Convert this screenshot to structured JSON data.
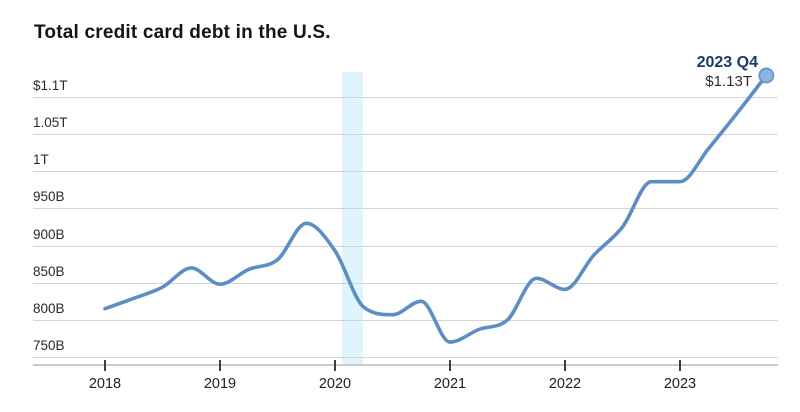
{
  "title": "Total credit card debt in the U.S.",
  "chart_data": {
    "type": "line",
    "title": "Total credit card debt in the U.S.",
    "unit": "USD billions",
    "x": [
      "2018 Q1",
      "2018 Q2",
      "2018 Q3",
      "2018 Q4",
      "2019 Q1",
      "2019 Q2",
      "2019 Q3",
      "2019 Q4",
      "2020 Q1",
      "2020 Q2",
      "2020 Q3",
      "2020 Q4",
      "2021 Q1",
      "2021 Q2",
      "2021 Q3",
      "2021 Q4",
      "2022 Q1",
      "2022 Q2",
      "2022 Q3",
      "2022 Q4",
      "2023 Q1",
      "2023 Q2",
      "2023 Q3",
      "2023 Q4"
    ],
    "values_billions": [
      815,
      829,
      844,
      870,
      848,
      868,
      881,
      930,
      893,
      817,
      807,
      825,
      770,
      787,
      800,
      856,
      841,
      887,
      925,
      986,
      986,
      1031,
      1079,
      1129
    ],
    "x_ticks": [
      "2018",
      "2019",
      "2020",
      "2021",
      "2022",
      "2023"
    ],
    "y_tick_labels": [
      "$1.1T",
      "1.05T",
      "1T",
      "950B",
      "900B",
      "850B",
      "800B",
      "750B"
    ],
    "y_tick_values": [
      1100,
      1050,
      1000,
      950,
      900,
      850,
      800,
      750
    ],
    "ylim": [
      750,
      1100
    ],
    "grid": "horizontal",
    "legend": "none",
    "annotation": {
      "label": "2023 Q4",
      "value": "$1.13T"
    },
    "highlight_band": {
      "from": "2020 Q1",
      "to": "2020 Q2"
    },
    "colors": {
      "line": "#5c8ec5",
      "marker_fill": "#8cb6e2",
      "marker_stroke": "#6b98cb",
      "band": "#dff5fb",
      "annotation_label": "#1b3a68"
    }
  }
}
